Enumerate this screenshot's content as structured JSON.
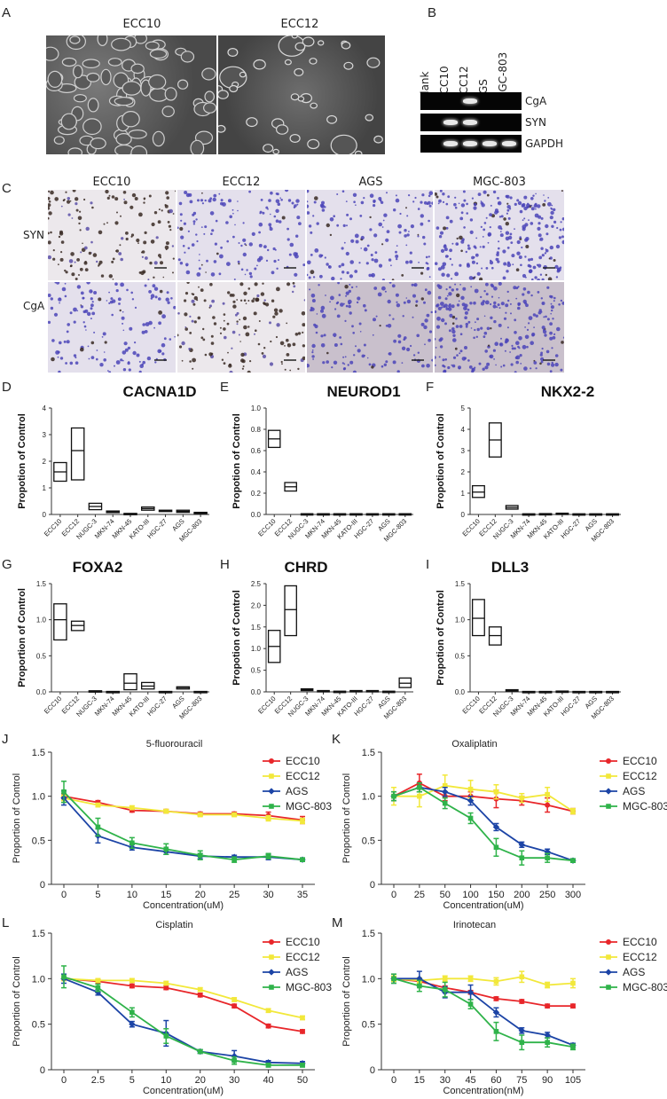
{
  "panels": {
    "A": {
      "letter": "A",
      "images": [
        "ECC10",
        "ECC12"
      ]
    },
    "B": {
      "letter": "B",
      "lanes": [
        "Blank",
        "ECC10",
        "ECC12",
        "AGS",
        "MGC-803"
      ],
      "rows": [
        "CgA",
        "SYN",
        "GAPDH"
      ],
      "bands": {
        "CgA": [
          0,
          0,
          1,
          0,
          0
        ],
        "SYN": [
          0,
          1,
          1,
          0,
          0
        ],
        "GAPDH": [
          0,
          1,
          1,
          1,
          1
        ]
      }
    },
    "C": {
      "letter": "C",
      "columns": [
        "ECC10",
        "ECC12",
        "AGS",
        "MGC-803"
      ],
      "rows": [
        "SYN",
        "CgA"
      ]
    },
    "D": {
      "letter": "D"
    },
    "E": {
      "letter": "E"
    },
    "F": {
      "letter": "F"
    },
    "G": {
      "letter": "G"
    },
    "H": {
      "letter": "H"
    },
    "I": {
      "letter": "I"
    },
    "J": {
      "letter": "J"
    },
    "K": {
      "letter": "K"
    },
    "L": {
      "letter": "L"
    },
    "M": {
      "letter": "M"
    }
  },
  "colors": {
    "ECC10": "#e8262a",
    "ECC12": "#f2e83a",
    "AGS": "#1c44a6",
    "MGC-803": "#2fb34a"
  },
  "chart_data": [
    {
      "id": "D",
      "type": "box",
      "title": "CACNA1D",
      "ylabel": "Propotion of Control",
      "ylim": [
        0,
        4
      ],
      "yticks": [
        0,
        1,
        2,
        3,
        4
      ],
      "categories": [
        "ECC10",
        "ECC12",
        "NUGC-3",
        "MKN-74",
        "MKN-45",
        "KATO-III",
        "HGC-27",
        "AGS",
        "MGC-803"
      ],
      "boxes": [
        [
          1.25,
          1.6,
          1.95
        ],
        [
          1.3,
          2.4,
          3.25
        ],
        [
          0.18,
          0.3,
          0.42
        ],
        [
          0.07,
          0.1,
          0.13
        ],
        [
          0.02,
          0.03,
          0.04
        ],
        [
          0.16,
          0.22,
          0.28
        ],
        [
          0.12,
          0.14,
          0.16
        ],
        [
          0.08,
          0.12,
          0.16
        ],
        [
          0.04,
          0.06,
          0.08
        ]
      ]
    },
    {
      "id": "E",
      "type": "box",
      "title": "NEUROD1",
      "ylabel": "Propotion of Control",
      "ylim": [
        0,
        1.0
      ],
      "yticks": [
        0.0,
        0.2,
        0.4,
        0.6,
        0.8,
        1.0
      ],
      "categories": [
        "ECC10",
        "ECC12",
        "NUGC-3",
        "MKN-74",
        "MKN-45",
        "KATO-III",
        "HGC-27",
        "AGS",
        "MGC-803"
      ],
      "boxes": [
        [
          0.63,
          0.71,
          0.79
        ],
        [
          0.22,
          0.26,
          0.3
        ],
        [
          0.003,
          0.005,
          0.007
        ],
        [
          0.003,
          0.005,
          0.007
        ],
        [
          0.003,
          0.005,
          0.007
        ],
        [
          0.003,
          0.005,
          0.007
        ],
        [
          0.003,
          0.005,
          0.007
        ],
        [
          0.003,
          0.005,
          0.007
        ],
        [
          0.003,
          0.005,
          0.007
        ]
      ]
    },
    {
      "id": "F",
      "type": "box",
      "title": "NKX2-2",
      "ylabel": "Propotion of Control",
      "ylim": [
        0,
        5
      ],
      "yticks": [
        0,
        1,
        2,
        3,
        4,
        5
      ],
      "categories": [
        "ECC10",
        "ECC12",
        "NUGC-3",
        "MKN-74",
        "MKN-45",
        "KATO-III",
        "HGC-27",
        "AGS",
        "MGC-803"
      ],
      "boxes": [
        [
          0.8,
          1.05,
          1.35
        ],
        [
          2.7,
          3.5,
          4.3
        ],
        [
          0.25,
          0.33,
          0.42
        ],
        [
          0.01,
          0.02,
          0.03
        ],
        [
          0.02,
          0.03,
          0.04
        ],
        [
          0.02,
          0.04,
          0.06
        ],
        [
          0.01,
          0.02,
          0.03
        ],
        [
          0.01,
          0.02,
          0.03
        ],
        [
          0.01,
          0.02,
          0.03
        ]
      ]
    },
    {
      "id": "G",
      "type": "box",
      "title": "FOXA2",
      "ylabel": "Proportion of Control",
      "ylim": [
        0,
        1.5
      ],
      "yticks": [
        0.0,
        0.5,
        1.0,
        1.5
      ],
      "categories": [
        "ECC10",
        "ECC12",
        "NUGC-3",
        "MKN-74",
        "MKN-45",
        "KATO-III",
        "HGC-27",
        "AGS",
        "MGC-803"
      ],
      "boxes": [
        [
          0.72,
          1.0,
          1.22
        ],
        [
          0.85,
          0.92,
          0.98
        ],
        [
          0.005,
          0.01,
          0.015
        ],
        [
          0.002,
          0.004,
          0.006
        ],
        [
          0.03,
          0.12,
          0.25
        ],
        [
          0.04,
          0.08,
          0.13
        ],
        [
          0.002,
          0.004,
          0.006
        ],
        [
          0.04,
          0.06,
          0.07
        ],
        [
          0.002,
          0.004,
          0.006
        ]
      ]
    },
    {
      "id": "H",
      "type": "box",
      "title": "CHRD",
      "ylabel": "Propotion of Control",
      "ylim": [
        0,
        2.5
      ],
      "yticks": [
        0.0,
        0.5,
        1.0,
        1.5,
        2.0,
        2.5
      ],
      "categories": [
        "ECC10",
        "ECC12",
        "NUGC-3",
        "MKN-74",
        "MKN-45",
        "KATO-III",
        "HGC-27",
        "AGS",
        "MGC-803"
      ],
      "boxes": [
        [
          0.68,
          1.05,
          1.42
        ],
        [
          1.3,
          1.9,
          2.45
        ],
        [
          0.03,
          0.05,
          0.07
        ],
        [
          0.01,
          0.02,
          0.03
        ],
        [
          0.005,
          0.01,
          0.015
        ],
        [
          0.01,
          0.02,
          0.03
        ],
        [
          0.01,
          0.02,
          0.03
        ],
        [
          0.005,
          0.01,
          0.015
        ],
        [
          0.1,
          0.2,
          0.32
        ]
      ]
    },
    {
      "id": "I",
      "type": "box",
      "title": "DLL3",
      "ylabel": "Propotion of Control",
      "ylim": [
        0,
        1.5
      ],
      "yticks": [
        0.0,
        0.5,
        1.0,
        1.5
      ],
      "categories": [
        "ECC10",
        "ECC12",
        "NUGC-3",
        "MKN-74",
        "MKN-45",
        "KATO-III",
        "HGC-27",
        "AGS",
        "MGC-803"
      ],
      "boxes": [
        [
          0.78,
          1.02,
          1.28
        ],
        [
          0.65,
          0.78,
          0.9
        ],
        [
          0.01,
          0.02,
          0.03
        ],
        [
          0.002,
          0.004,
          0.006
        ],
        [
          0.002,
          0.004,
          0.006
        ],
        [
          0.005,
          0.008,
          0.011
        ],
        [
          0.002,
          0.004,
          0.006
        ],
        [
          0.002,
          0.004,
          0.006
        ],
        [
          0.002,
          0.004,
          0.006
        ]
      ]
    },
    {
      "id": "J",
      "type": "line",
      "title": "5-fluorouracil",
      "xlabel": "Concentration(uM)",
      "ylabel": "Proportion of Control",
      "ylim": [
        0,
        1.5
      ],
      "yticks": [
        "0",
        "0.5",
        "1.0",
        "1.5"
      ],
      "xticks": [
        "0",
        "5",
        "10",
        "15",
        "20",
        "25",
        "30",
        "35"
      ],
      "series": [
        {
          "name": "ECC10",
          "y": [
            1.0,
            0.93,
            0.84,
            0.83,
            0.8,
            0.8,
            0.78,
            0.73
          ],
          "err": [
            0.03,
            0.02,
            0.02,
            0.02,
            0.02,
            0.02,
            0.04,
            0.04
          ]
        },
        {
          "name": "ECC12",
          "y": [
            0.98,
            0.9,
            0.87,
            0.83,
            0.79,
            0.79,
            0.75,
            0.72
          ],
          "err": [
            0.03,
            0.02,
            0.02,
            0.02,
            0.02,
            0.02,
            0.03,
            0.03
          ]
        },
        {
          "name": "AGS",
          "y": [
            0.98,
            0.55,
            0.42,
            0.37,
            0.32,
            0.31,
            0.31,
            0.28
          ],
          "err": [
            0.08,
            0.08,
            0.03,
            0.03,
            0.03,
            0.02,
            0.03,
            0.02
          ]
        },
        {
          "name": "MGC-803",
          "y": [
            1.05,
            0.65,
            0.47,
            0.4,
            0.33,
            0.28,
            0.32,
            0.28
          ],
          "err": [
            0.12,
            0.1,
            0.06,
            0.06,
            0.05,
            0.03,
            0.03,
            0.02
          ]
        }
      ]
    },
    {
      "id": "K",
      "type": "line",
      "title": "Oxaliplatin",
      "xlabel": "Concentration(uM)",
      "ylabel": "Proportion of Control",
      "ylim": [
        0,
        1.5
      ],
      "yticks": [
        "0",
        "0.5",
        "1.0",
        "1.5"
      ],
      "xticks": [
        "0",
        "25",
        "50",
        "100",
        "150",
        "200",
        "250",
        "300"
      ],
      "series": [
        {
          "name": "ECC10",
          "y": [
            1.0,
            1.15,
            1.0,
            1.0,
            0.97,
            0.95,
            0.9,
            0.83
          ],
          "err": [
            0.05,
            0.1,
            0.05,
            0.05,
            0.1,
            0.05,
            0.08,
            0.03
          ]
        },
        {
          "name": "ECC12",
          "y": [
            1.0,
            1.0,
            1.12,
            1.08,
            1.05,
            0.98,
            1.02,
            0.83
          ],
          "err": [
            0.1,
            0.12,
            0.12,
            0.1,
            0.08,
            0.05,
            0.08,
            0.03
          ]
        },
        {
          "name": "AGS",
          "y": [
            1.0,
            1.1,
            1.05,
            0.95,
            0.65,
            0.45,
            0.37,
            0.27
          ],
          "err": [
            0.05,
            0.05,
            0.05,
            0.05,
            0.04,
            0.03,
            0.03,
            0.02
          ]
        },
        {
          "name": "MGC-803",
          "y": [
            1.0,
            1.1,
            0.92,
            0.75,
            0.42,
            0.3,
            0.3,
            0.27
          ],
          "err": [
            0.05,
            0.05,
            0.06,
            0.06,
            0.1,
            0.08,
            0.05,
            0.02
          ]
        }
      ]
    },
    {
      "id": "L",
      "type": "line",
      "title": "Cisplatin",
      "xlabel": "Concentration(uM)",
      "ylabel": "Proportion of Control",
      "ylim": [
        0,
        1.5
      ],
      "yticks": [
        "0",
        "0.5",
        "1.0",
        "1.5"
      ],
      "xticks": [
        "0",
        "2.5",
        "5",
        "10",
        "20",
        "30",
        "40",
        "50"
      ],
      "series": [
        {
          "name": "ECC10",
          "y": [
            1.0,
            0.97,
            0.92,
            0.9,
            0.82,
            0.7,
            0.48,
            0.42
          ],
          "err": [
            0.02,
            0.02,
            0.02,
            0.02,
            0.02,
            0.02,
            0.02,
            0.02
          ]
        },
        {
          "name": "ECC12",
          "y": [
            1.0,
            0.98,
            0.98,
            0.95,
            0.88,
            0.77,
            0.65,
            0.57
          ],
          "err": [
            0.02,
            0.02,
            0.02,
            0.02,
            0.02,
            0.02,
            0.02,
            0.02
          ]
        },
        {
          "name": "AGS",
          "y": [
            1.0,
            0.85,
            0.5,
            0.4,
            0.2,
            0.15,
            0.08,
            0.07
          ],
          "err": [
            0.05,
            0.03,
            0.03,
            0.14,
            0.02,
            0.06,
            0.02,
            0.02
          ]
        },
        {
          "name": "MGC-803",
          "y": [
            1.02,
            0.9,
            0.63,
            0.37,
            0.2,
            0.1,
            0.05,
            0.05
          ],
          "err": [
            0.12,
            0.04,
            0.05,
            0.08,
            0.02,
            0.04,
            0.02,
            0.02
          ]
        }
      ]
    },
    {
      "id": "M",
      "type": "line",
      "title": "Irinotecan",
      "xlabel": "Concentration(nM)",
      "ylabel": "Proportion of Control",
      "ylim": [
        0,
        1.5
      ],
      "yticks": [
        "0",
        "0.5",
        "1.0",
        "1.5"
      ],
      "xticks": [
        "0",
        "15",
        "30",
        "45",
        "60",
        "75",
        "90",
        "105"
      ],
      "series": [
        {
          "name": "ECC10",
          "y": [
            1.0,
            0.97,
            0.9,
            0.85,
            0.78,
            0.75,
            0.7,
            0.7
          ],
          "err": [
            0.02,
            0.02,
            0.02,
            0.02,
            0.02,
            0.02,
            0.02,
            0.02
          ]
        },
        {
          "name": "ECC12",
          "y": [
            1.0,
            0.98,
            1.0,
            1.0,
            0.97,
            1.02,
            0.93,
            0.95
          ],
          "err": [
            0.03,
            0.03,
            0.03,
            0.03,
            0.04,
            0.06,
            0.03,
            0.05
          ]
        },
        {
          "name": "AGS",
          "y": [
            1.0,
            1.0,
            0.85,
            0.85,
            0.63,
            0.43,
            0.38,
            0.27
          ],
          "err": [
            0.05,
            0.08,
            0.06,
            0.08,
            0.05,
            0.03,
            0.03,
            0.02
          ]
        },
        {
          "name": "MGC-803",
          "y": [
            1.0,
            0.92,
            0.88,
            0.72,
            0.42,
            0.3,
            0.3,
            0.25
          ],
          "err": [
            0.05,
            0.06,
            0.08,
            0.05,
            0.1,
            0.08,
            0.05,
            0.03
          ]
        }
      ]
    }
  ]
}
